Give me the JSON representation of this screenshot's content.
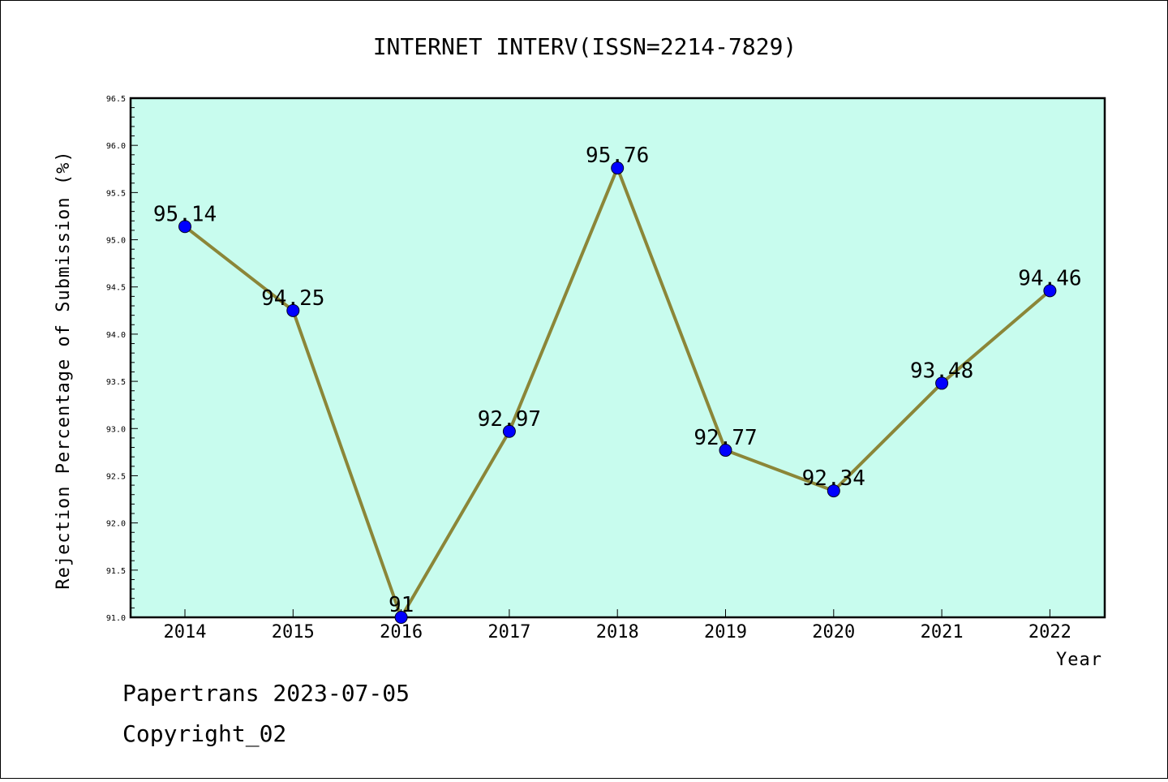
{
  "chart_data": {
    "type": "line",
    "title": "INTERNET INTERV(ISSN=2214-7829)",
    "xlabel": "Year",
    "ylabel": "Rejection Percentage of Submission (%)",
    "ylim": [
      91.0,
      96.5
    ],
    "y_ticks": [
      "91.0",
      "91.5",
      "92.0",
      "92.5",
      "93.0",
      "93.5",
      "94.0",
      "94.5",
      "95.0",
      "95.5",
      "96.0",
      "96.5"
    ],
    "categories": [
      "2014",
      "2015",
      "2016",
      "2017",
      "2018",
      "2019",
      "2020",
      "2021",
      "2022"
    ],
    "values": [
      95.14,
      94.25,
      91,
      92.97,
      95.76,
      92.77,
      92.34,
      93.48,
      94.46
    ],
    "data_labels": [
      "95.14",
      "94.25",
      "91",
      "92.97",
      "95.76",
      "92.77",
      "92.34",
      "93.48",
      "94.46"
    ],
    "grid": false,
    "colors": {
      "plot_background": "#c8fcee",
      "line": "#8b8638",
      "marker": "#0000ff"
    }
  },
  "footer": {
    "line1": "Papertrans 2023-07-05",
    "line2": "Copyright_02"
  }
}
